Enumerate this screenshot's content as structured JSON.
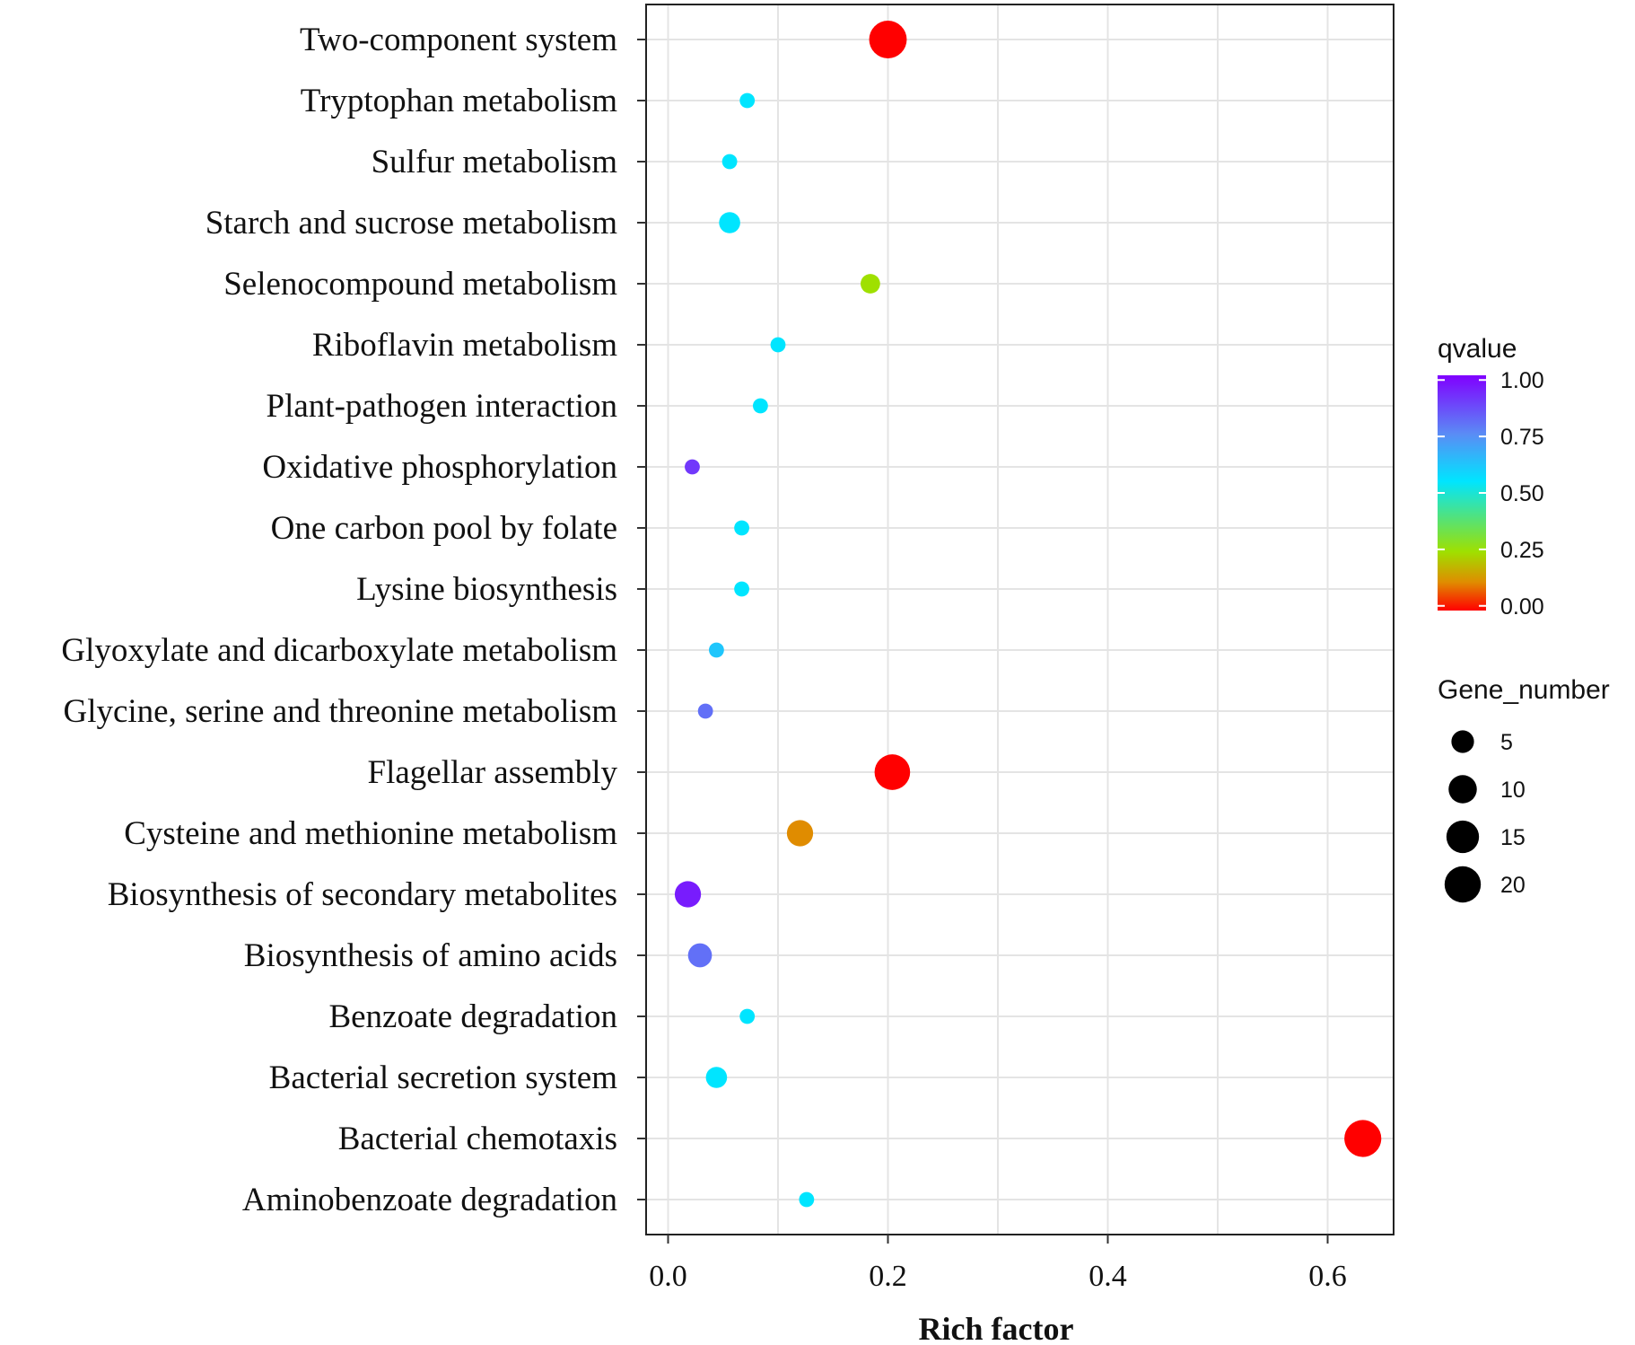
{
  "chart_data": {
    "type": "scatter",
    "xlabel": "Rich factor",
    "xlim": [
      -0.02,
      0.66
    ],
    "xticks": [
      0.0,
      0.2,
      0.4,
      0.6
    ],
    "xtick_labels": [
      "0.0",
      "0.2",
      "0.4",
      "0.6"
    ],
    "grid": true,
    "categories": [
      "Two-component system",
      "Tryptophan metabolism",
      "Sulfur metabolism",
      "Starch and sucrose metabolism",
      "Selenocompound metabolism",
      "Riboflavin metabolism",
      "Plant-pathogen interaction",
      "Oxidative phosphorylation",
      "One carbon pool by folate",
      "Lysine biosynthesis",
      "Glyoxylate and dicarboxylate metabolism",
      "Glycine, serine and threonine metabolism",
      "Flagellar assembly",
      "Cysteine and methionine metabolism",
      "Biosynthesis of secondary metabolites",
      "Biosynthesis of amino acids",
      "Benzoate degradation",
      "Bacterial secretion system",
      "Bacterial chemotaxis",
      "Aminobenzoate degradation"
    ],
    "rich_factor": [
      0.2,
      0.072,
      0.056,
      0.056,
      0.184,
      0.1,
      0.084,
      0.022,
      0.067,
      0.067,
      0.044,
      0.034,
      0.204,
      0.12,
      0.018,
      0.029,
      0.072,
      0.044,
      0.632,
      0.126
    ],
    "qvalue": [
      0.0,
      0.55,
      0.55,
      0.55,
      0.25,
      0.55,
      0.55,
      0.9,
      0.55,
      0.55,
      0.62,
      0.8,
      0.0,
      0.12,
      0.95,
      0.8,
      0.55,
      0.55,
      0.0,
      0.55
    ],
    "gene_number": [
      22,
      1,
      1,
      4,
      3,
      1,
      1,
      1,
      1,
      1,
      1,
      1,
      19,
      8,
      8,
      6,
      1,
      4,
      21,
      1
    ],
    "color_legend": {
      "title": "qvalue",
      "ticks": [
        1.0,
        0.75,
        0.5,
        0.25,
        0.0
      ],
      "tick_labels": [
        "1.00",
        "0.75",
        "0.50",
        "0.25",
        "0.00"
      ],
      "placement": "right"
    },
    "size_legend": {
      "title": "Gene_number",
      "values": [
        5,
        10,
        15,
        20
      ],
      "labels": [
        "5",
        "10",
        "15",
        "20"
      ],
      "placement": "right"
    }
  }
}
